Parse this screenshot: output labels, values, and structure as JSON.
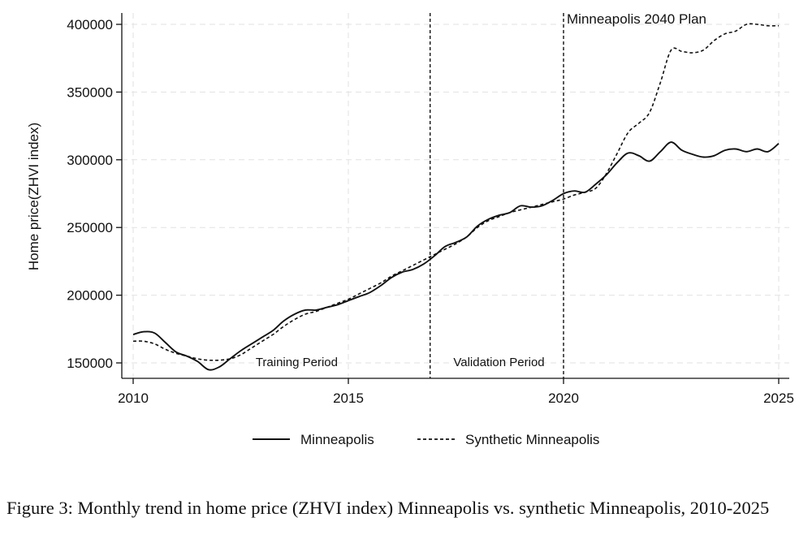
{
  "chart_data": {
    "type": "line",
    "title": "",
    "xlabel": "",
    "ylabel": "Home price(ZHVI index)",
    "xlim": [
      2009.9,
      2025.2
    ],
    "ylim": [
      140000,
      405000
    ],
    "x_ticks": [
      2010,
      2015,
      2020,
      2025
    ],
    "y_ticks": [
      150000,
      200000,
      250000,
      300000,
      350000,
      400000
    ],
    "x_tick_labels": [
      "2010",
      "2015",
      "2020",
      "2025"
    ],
    "y_tick_labels": [
      "150000",
      "200000",
      "250000",
      "300000",
      "350000",
      "400000"
    ],
    "grid": true,
    "legend_position": "bottom",
    "vlines": [
      2016.9,
      2020
    ],
    "annotations": [
      {
        "text": "Training Period",
        "x": 2013.8,
        "y": 150000
      },
      {
        "text": "Validation Period",
        "x": 2018.5,
        "y": 150000
      },
      {
        "text": "Minneapolis 2040 Plan",
        "x": 2021.2,
        "y": 401500
      }
    ],
    "series": [
      {
        "name": "Minneapolis",
        "style": "solid",
        "x": [
          2010.0,
          2010.25,
          2010.5,
          2010.75,
          2011.0,
          2011.25,
          2011.5,
          2011.75,
          2012.0,
          2012.25,
          2012.5,
          2012.75,
          2013.0,
          2013.25,
          2013.5,
          2013.75,
          2014.0,
          2014.25,
          2014.5,
          2014.75,
          2015.0,
          2015.25,
          2015.5,
          2015.75,
          2016.0,
          2016.25,
          2016.5,
          2016.75,
          2017.0,
          2017.25,
          2017.5,
          2017.75,
          2018.0,
          2018.25,
          2018.5,
          2018.75,
          2019.0,
          2019.25,
          2019.5,
          2019.75,
          2020.0,
          2020.25,
          2020.5,
          2020.75,
          2021.0,
          2021.25,
          2021.5,
          2021.75,
          2022.0,
          2022.25,
          2022.5,
          2022.75,
          2023.0,
          2023.25,
          2023.5,
          2023.75,
          2024.0,
          2024.25,
          2024.5,
          2024.75,
          2025.0
        ],
        "values": [
          171000,
          173000,
          172000,
          165000,
          158000,
          155000,
          151000,
          145000,
          147000,
          153000,
          159000,
          164000,
          169000,
          174000,
          181000,
          186000,
          189000,
          189000,
          191000,
          193000,
          196000,
          199000,
          202000,
          207000,
          213000,
          217000,
          219000,
          223000,
          229000,
          236000,
          239000,
          243000,
          251000,
          256000,
          259000,
          261000,
          266000,
          265000,
          266000,
          270000,
          275000,
          277000,
          276000,
          282000,
          289000,
          298000,
          305000,
          303000,
          299000,
          306000,
          313000,
          307000,
          304000,
          302000,
          303000,
          307000,
          308000,
          306000,
          308000,
          306000,
          312000
        ]
      },
      {
        "name": "Synthetic Minneapolis",
        "style": "dashed",
        "x": [
          2010.0,
          2010.25,
          2010.5,
          2010.75,
          2011.0,
          2011.25,
          2011.5,
          2011.75,
          2012.0,
          2012.25,
          2012.5,
          2012.75,
          2013.0,
          2013.25,
          2013.5,
          2013.75,
          2014.0,
          2014.25,
          2014.5,
          2014.75,
          2015.0,
          2015.25,
          2015.5,
          2015.75,
          2016.0,
          2016.25,
          2016.5,
          2016.75,
          2017.0,
          2017.25,
          2017.5,
          2017.75,
          2018.0,
          2018.25,
          2018.5,
          2018.75,
          2019.0,
          2019.25,
          2019.5,
          2019.75,
          2020.0,
          2020.25,
          2020.5,
          2020.75,
          2021.0,
          2021.25,
          2021.5,
          2021.75,
          2022.0,
          2022.25,
          2022.5,
          2022.75,
          2023.0,
          2023.25,
          2023.5,
          2023.75,
          2024.0,
          2024.25,
          2024.5,
          2024.75,
          2025.0
        ],
        "values": [
          166000,
          166000,
          164000,
          160000,
          157000,
          155000,
          153000,
          152000,
          152000,
          153000,
          156000,
          161000,
          166000,
          171000,
          177000,
          182000,
          186000,
          188000,
          191000,
          194000,
          197000,
          201000,
          205000,
          209000,
          214000,
          218000,
          222000,
          226000,
          230000,
          234000,
          238000,
          243000,
          250000,
          255000,
          258000,
          261000,
          263000,
          265000,
          267000,
          269000,
          271000,
          274000,
          276000,
          279000,
          290000,
          305000,
          320000,
          327000,
          335000,
          357000,
          381000,
          380000,
          379000,
          381000,
          388000,
          393000,
          395000,
          400000,
          400000,
          399000,
          399000
        ]
      }
    ]
  },
  "caption": "Figure 3:  Monthly trend in home price (ZHVI index) Minneapolis vs.  synthetic Minneapolis, 2010-2025"
}
